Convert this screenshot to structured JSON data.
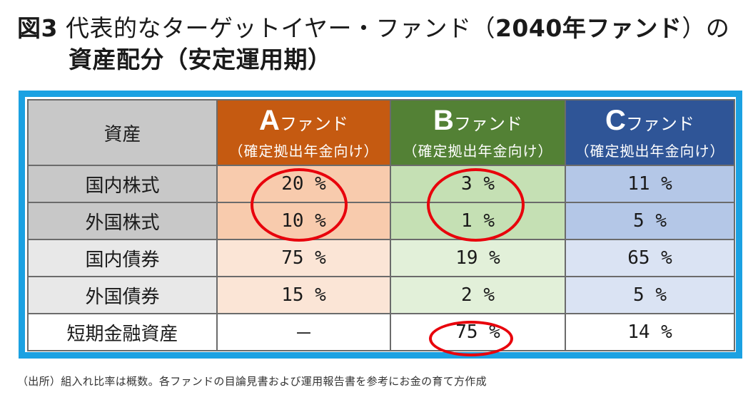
{
  "title": {
    "prefix": "図3",
    "line1_text": " 代表的なターゲットイヤー・ファンド（",
    "line1_bold": "2040年ファンド",
    "line1_end": "）の",
    "line2": "資産配分（安定運用期）"
  },
  "table": {
    "header": {
      "asset_label": "資産",
      "funds": [
        {
          "letter": "A",
          "name": "ファンド",
          "sub": "（確定拠出年金向け）"
        },
        {
          "letter": "B",
          "name": "ファンド",
          "sub": "（確定拠出年金向け）"
        },
        {
          "letter": "C",
          "name": "ファンド",
          "sub": "（確定拠出年金向け）"
        }
      ]
    },
    "rows": [
      {
        "label": "国内株式",
        "a": "20 %",
        "b": "3 %",
        "c": "11 %"
      },
      {
        "label": "外国株式",
        "a": "10 %",
        "b": "1 %",
        "c": "5 %"
      },
      {
        "label": "国内債券",
        "a": "75 %",
        "b": "19 %",
        "c": "65 %"
      },
      {
        "label": "外国債券",
        "a": "15 %",
        "b": "2 %",
        "c": "5 %"
      },
      {
        "label": "短期金融資産",
        "a": "－",
        "b": "75 %",
        "c": "14 %"
      }
    ]
  },
  "colors": {
    "frame": "#1ba1e2",
    "fund_a": "#c55a11",
    "fund_b": "#538135",
    "fund_c": "#2f5597",
    "highlight_oval": "#e8000b"
  },
  "footnote": "（出所）組入れ比率は概数。各ファンドの目論見書および運用報告書を参考にお金の育て方作成"
}
